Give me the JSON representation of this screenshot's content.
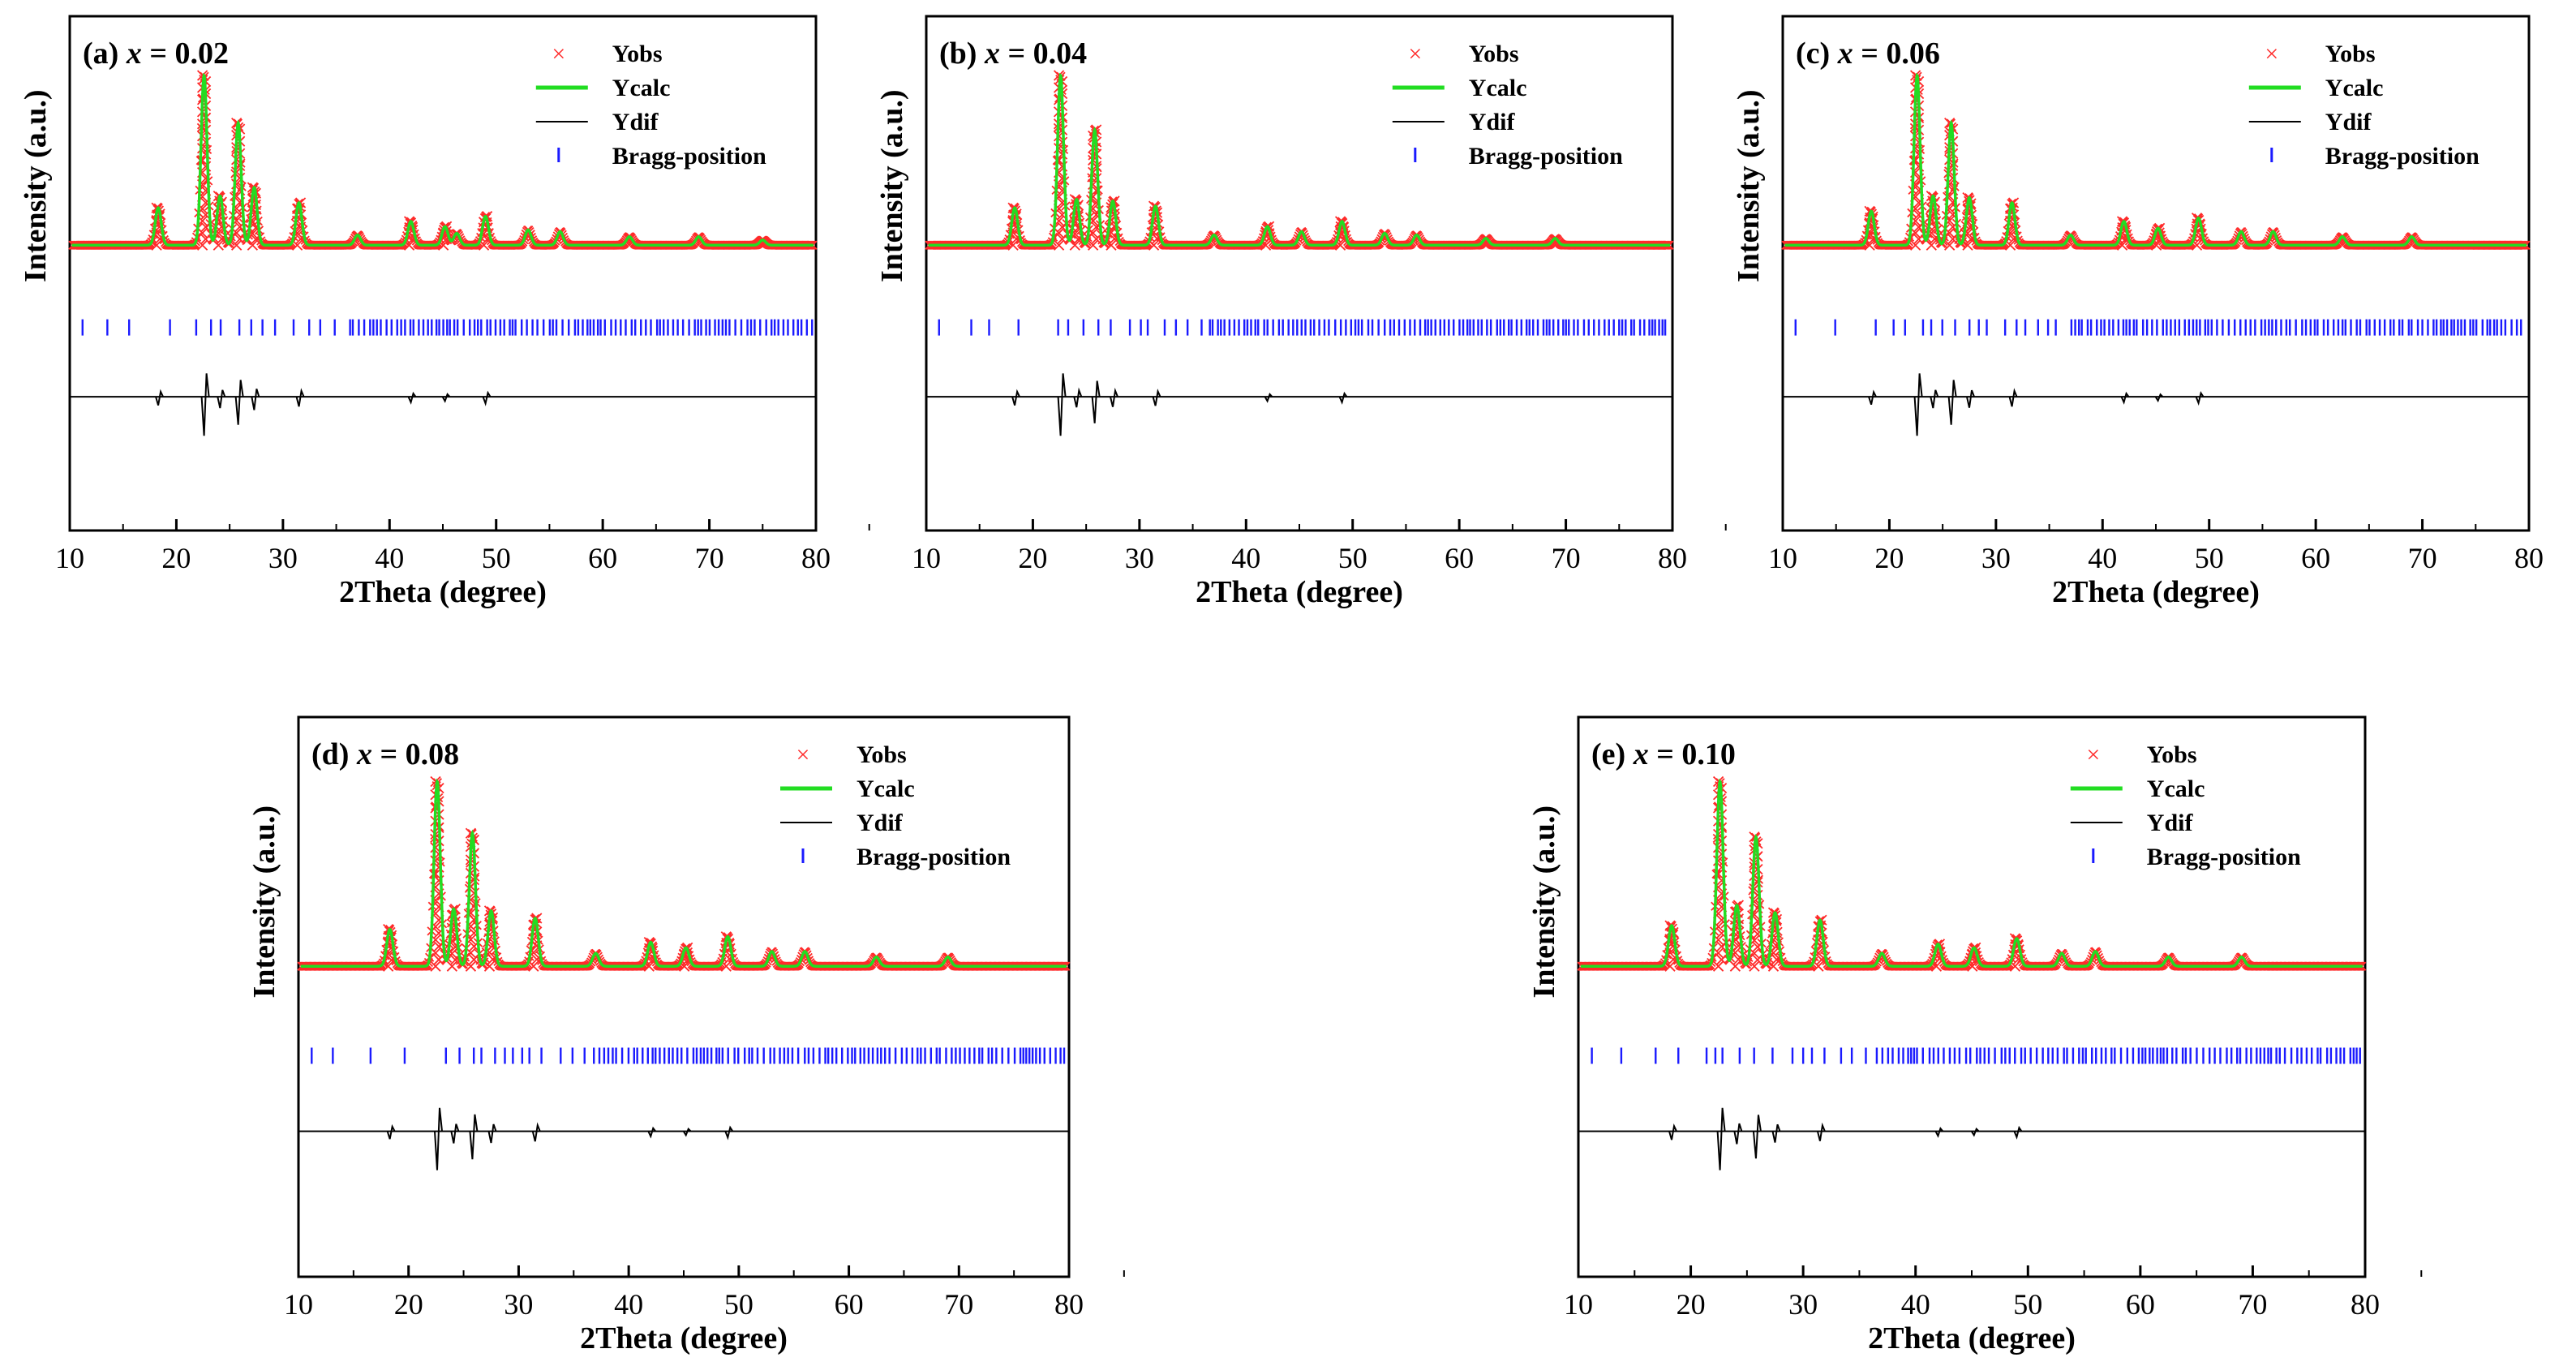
{
  "figure": {
    "colors": {
      "yobs": "#ff2a2a",
      "ycalc": "#22dd22",
      "ydif": "#000000",
      "bragg": "#1a1aff",
      "axis": "#000000"
    },
    "legend_labels": {
      "yobs": "Yobs",
      "ycalc": "Ycalc",
      "ydif": "Ydif",
      "bragg": "Bragg-position"
    }
  },
  "chart_data": [
    {
      "type": "line",
      "panel_label": "(a) ",
      "panel_var": "x",
      "panel_value": " = 0.02",
      "xlabel": "2Theta (degree)",
      "ylabel": "Intensity (a.u.)",
      "xlim": [
        10,
        80
      ],
      "xticks": [
        "10",
        "20",
        "30",
        "40",
        "50",
        "60",
        "70",
        "80"
      ],
      "legend_position": "top-right",
      "background": 0.06,
      "peaks": [
        {
          "x": 18.3,
          "h": 0.22
        },
        {
          "x": 22.6,
          "h": 1.0
        },
        {
          "x": 24.1,
          "h": 0.29
        },
        {
          "x": 25.8,
          "h": 0.72
        },
        {
          "x": 27.3,
          "h": 0.34
        },
        {
          "x": 31.5,
          "h": 0.25
        },
        {
          "x": 37.0,
          "h": 0.06
        },
        {
          "x": 42.0,
          "h": 0.14
        },
        {
          "x": 45.2,
          "h": 0.11
        },
        {
          "x": 46.3,
          "h": 0.07
        },
        {
          "x": 49.0,
          "h": 0.17
        },
        {
          "x": 53.0,
          "h": 0.09
        },
        {
          "x": 56.0,
          "h": 0.08
        },
        {
          "x": 62.5,
          "h": 0.05
        },
        {
          "x": 69.0,
          "h": 0.05
        },
        {
          "x": 75.0,
          "h": 0.03
        }
      ]
    },
    {
      "type": "line",
      "panel_label": "(b) ",
      "panel_var": "x",
      "panel_value": " = 0.04",
      "xlabel": "2Theta (degree)",
      "ylabel": "Intensity (a.u.)",
      "xlim": [
        10,
        80
      ],
      "xticks": [
        "10",
        "20",
        "30",
        "40",
        "50",
        "60",
        "70",
        "80"
      ],
      "legend_position": "top-right",
      "background": 0.06,
      "peaks": [
        {
          "x": 18.3,
          "h": 0.22
        },
        {
          "x": 22.6,
          "h": 1.0
        },
        {
          "x": 24.1,
          "h": 0.27
        },
        {
          "x": 25.8,
          "h": 0.68
        },
        {
          "x": 27.5,
          "h": 0.26
        },
        {
          "x": 31.5,
          "h": 0.23
        },
        {
          "x": 37.0,
          "h": 0.06
        },
        {
          "x": 42.0,
          "h": 0.11
        },
        {
          "x": 45.2,
          "h": 0.08
        },
        {
          "x": 49.0,
          "h": 0.14
        },
        {
          "x": 53.0,
          "h": 0.07
        },
        {
          "x": 56.0,
          "h": 0.06
        },
        {
          "x": 62.5,
          "h": 0.04
        },
        {
          "x": 69.0,
          "h": 0.04
        }
      ]
    },
    {
      "type": "line",
      "panel_label": "(c) ",
      "panel_var": "x",
      "panel_value": " = 0.06",
      "xlabel": "2Theta (degree)",
      "ylabel": "Intensity (a.u.)",
      "xlim": [
        10,
        80
      ],
      "xticks": [
        "10",
        "20",
        "30",
        "40",
        "50",
        "60",
        "70",
        "80"
      ],
      "legend_position": "top-right",
      "background": 0.06,
      "peaks": [
        {
          "x": 18.3,
          "h": 0.2
        },
        {
          "x": 22.6,
          "h": 1.0
        },
        {
          "x": 24.1,
          "h": 0.29
        },
        {
          "x": 25.8,
          "h": 0.72
        },
        {
          "x": 27.5,
          "h": 0.28
        },
        {
          "x": 31.5,
          "h": 0.25
        },
        {
          "x": 37.0,
          "h": 0.06
        },
        {
          "x": 42.0,
          "h": 0.14
        },
        {
          "x": 45.2,
          "h": 0.1
        },
        {
          "x": 49.0,
          "h": 0.16
        },
        {
          "x": 53.0,
          "h": 0.08
        },
        {
          "x": 56.0,
          "h": 0.08
        },
        {
          "x": 62.5,
          "h": 0.05
        },
        {
          "x": 69.0,
          "h": 0.05
        }
      ]
    },
    {
      "type": "line",
      "panel_label": "(d) ",
      "panel_var": "x",
      "panel_value": " = 0.08",
      "xlabel": "2Theta (degree)",
      "ylabel": "Intensity (a.u.)",
      "xlim": [
        10,
        80
      ],
      "xticks": [
        "10",
        "20",
        "30",
        "40",
        "50",
        "60",
        "70",
        "80"
      ],
      "legend_position": "top-right",
      "background": 0.06,
      "peaks": [
        {
          "x": 18.3,
          "h": 0.2
        },
        {
          "x": 22.6,
          "h": 1.0
        },
        {
          "x": 24.1,
          "h": 0.31
        },
        {
          "x": 25.8,
          "h": 0.72
        },
        {
          "x": 27.5,
          "h": 0.3
        },
        {
          "x": 31.5,
          "h": 0.26
        },
        {
          "x": 37.0,
          "h": 0.07
        },
        {
          "x": 42.0,
          "h": 0.13
        },
        {
          "x": 45.2,
          "h": 0.1
        },
        {
          "x": 49.0,
          "h": 0.16
        },
        {
          "x": 53.0,
          "h": 0.08
        },
        {
          "x": 56.0,
          "h": 0.08
        },
        {
          "x": 62.5,
          "h": 0.05
        },
        {
          "x": 69.0,
          "h": 0.05
        }
      ]
    },
    {
      "type": "line",
      "panel_label": "(e) ",
      "panel_var": "x",
      "panel_value": " = 0.10",
      "xlabel": "2Theta (degree)",
      "ylabel": "Intensity (a.u.)",
      "xlim": [
        10,
        80
      ],
      "xticks": [
        "10",
        "20",
        "30",
        "40",
        "50",
        "60",
        "70",
        "80"
      ],
      "legend_position": "top-right",
      "background": 0.06,
      "peaks": [
        {
          "x": 18.3,
          "h": 0.22
        },
        {
          "x": 22.6,
          "h": 1.0
        },
        {
          "x": 24.1,
          "h": 0.33
        },
        {
          "x": 25.8,
          "h": 0.7
        },
        {
          "x": 27.5,
          "h": 0.29
        },
        {
          "x": 31.5,
          "h": 0.25
        },
        {
          "x": 37.0,
          "h": 0.07
        },
        {
          "x": 42.0,
          "h": 0.12
        },
        {
          "x": 45.2,
          "h": 0.1
        },
        {
          "x": 49.0,
          "h": 0.15
        },
        {
          "x": 53.0,
          "h": 0.07
        },
        {
          "x": 56.0,
          "h": 0.08
        },
        {
          "x": 62.5,
          "h": 0.05
        },
        {
          "x": 69.0,
          "h": 0.05
        }
      ]
    }
  ]
}
